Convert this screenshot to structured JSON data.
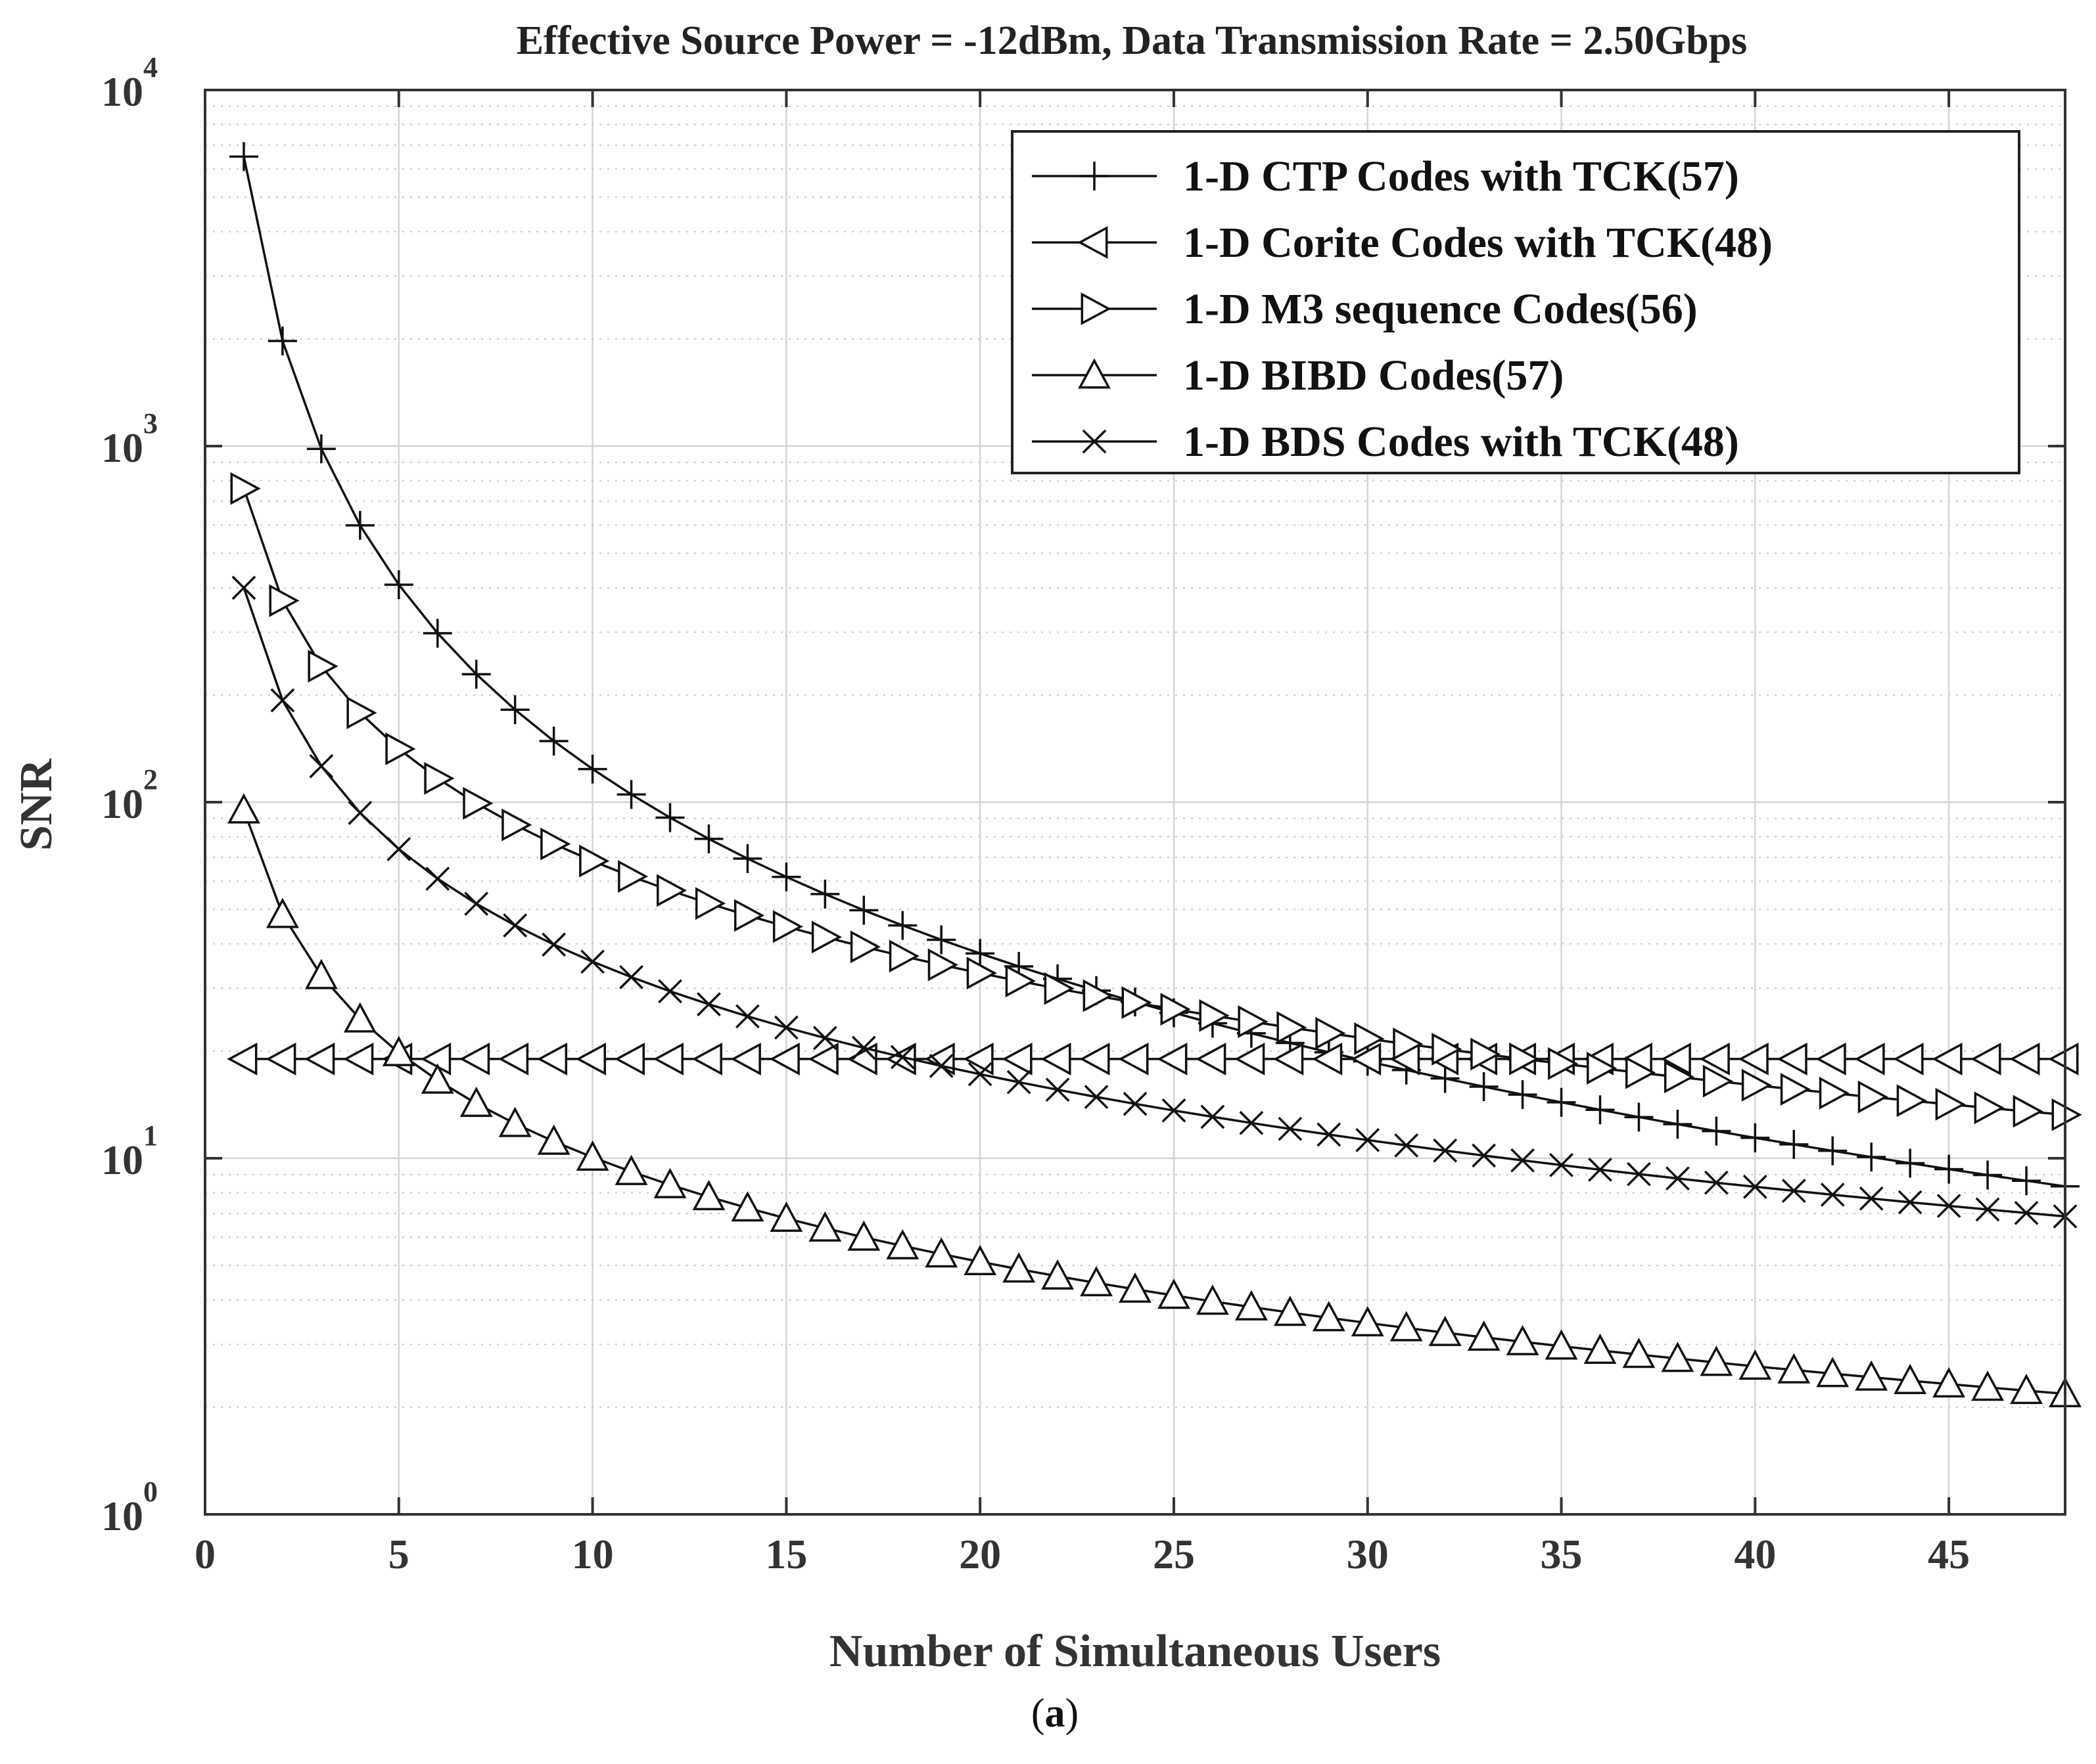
{
  "figure": {
    "caption_open": "(",
    "caption_letter": "a",
    "caption_close": ")"
  },
  "chart_data": {
    "type": "line",
    "title": "Effective Source Power = -12dBm, Data Transmission Rate = 2.50Gbps",
    "xlabel": "Number of Simultaneous Users",
    "ylabel": "SNR",
    "xlim": [
      0,
      48
    ],
    "ylim": [
      1,
      10000
    ],
    "yscale": "log",
    "grid": true,
    "legend_position": "top-right",
    "x_ticks": [
      0,
      5,
      10,
      15,
      20,
      25,
      30,
      35,
      40,
      45
    ],
    "y_ticks": [
      {
        "base": "10",
        "exp": "0"
      },
      {
        "base": "10",
        "exp": "1"
      },
      {
        "base": "10",
        "exp": "2"
      },
      {
        "base": "10",
        "exp": "3"
      },
      {
        "base": "10",
        "exp": "4"
      }
    ],
    "x": [
      1,
      2,
      3,
      4,
      5,
      6,
      7,
      8,
      9,
      10,
      11,
      12,
      13,
      14,
      15,
      16,
      17,
      18,
      19,
      20,
      21,
      22,
      23,
      24,
      25,
      26,
      27,
      28,
      29,
      30,
      31,
      32,
      33,
      34,
      35,
      36,
      37,
      38,
      39,
      40,
      41,
      42,
      43,
      44,
      45,
      46,
      47,
      48
    ],
    "series": [
      {
        "name": "1-D CTP Codes with TCK(57)",
        "marker": "plus",
        "model": {
          "kind": "power",
          "a": 6500,
          "p": 1.72
        }
      },
      {
        "name": "1-D Corite Codes with TCK(48)",
        "marker": "triangle-left",
        "model": {
          "kind": "constant",
          "c": 19
        }
      },
      {
        "name": "1-D M3 sequence Codes(56)",
        "marker": "triangle-right",
        "model": {
          "kind": "power",
          "a": 760,
          "p": 1.046
        }
      },
      {
        "name": "1-D BIBD Codes(57)",
        "marker": "triangle-up",
        "model": {
          "kind": "power",
          "a": 95,
          "p": 0.975
        }
      },
      {
        "name": "1-D BDS Codes with TCK(48)",
        "marker": "x",
        "model": {
          "kind": "power",
          "a": 400,
          "p": 1.05
        }
      }
    ]
  }
}
